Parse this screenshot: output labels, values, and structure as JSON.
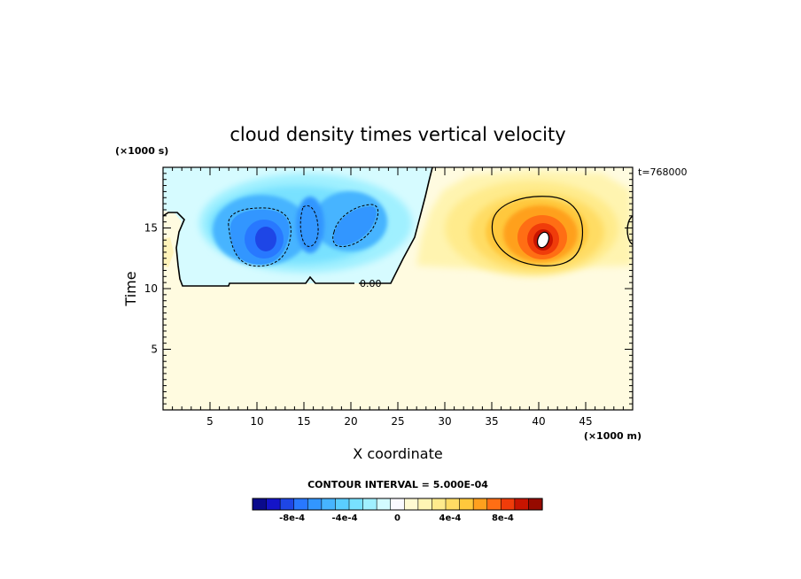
{
  "chart_data": {
    "type": "heatmap",
    "title": "cloud density times vertical velocity",
    "xlabel": "X coordinate",
    "ylabel": "Time",
    "x_unit_label": "(×1000 m)",
    "y_unit_label": "(×1000 s)",
    "time_label": "t=768000",
    "xlim": [
      0,
      50
    ],
    "ylim": [
      0,
      20
    ],
    "x_ticks": [
      5,
      10,
      15,
      20,
      25,
      30,
      35,
      40,
      45
    ],
    "y_ticks": [
      5,
      10,
      15
    ],
    "contour_interval_text": "CONTOUR INTERVAL = 5.000E-04",
    "zero_contour_label": "0.00",
    "colorbar": {
      "range": [
        -0.0011,
        0.0011
      ],
      "colors": [
        "#0a0a8c",
        "#1414c8",
        "#1e46e6",
        "#2878ff",
        "#3296ff",
        "#46b4ff",
        "#5acdff",
        "#78e1ff",
        "#a0f0ff",
        "#d2fbff",
        "#fafaff",
        "#fffad2",
        "#fff5b4",
        "#ffeb8c",
        "#ffdc64",
        "#ffc83c",
        "#ffa01e",
        "#ff6e14",
        "#f03c0a",
        "#c81400",
        "#960a00"
      ],
      "tick_labels": [
        {
          "label": "-8e-4",
          "value": -0.0008
        },
        {
          "label": "-4e-4",
          "value": -0.0004
        },
        {
          "label": "0",
          "value": 0
        },
        {
          "label": "4e-4",
          "value": 0.0004
        },
        {
          "label": "8e-4",
          "value": 0.0008
        }
      ]
    },
    "features": [
      {
        "name": "downdraft-core-1",
        "x": 11.0,
        "t": 14.0,
        "value": -0.00085
      },
      {
        "name": "downdraft-core-2",
        "x": 16.5,
        "t": 14.5,
        "value": -0.0006
      },
      {
        "name": "downdraft-core-3",
        "x": 20.0,
        "t": 15.0,
        "value": -0.0006
      },
      {
        "name": "updraft-core",
        "x": 40.5,
        "t": 14.0,
        "value": 0.0011
      }
    ]
  }
}
